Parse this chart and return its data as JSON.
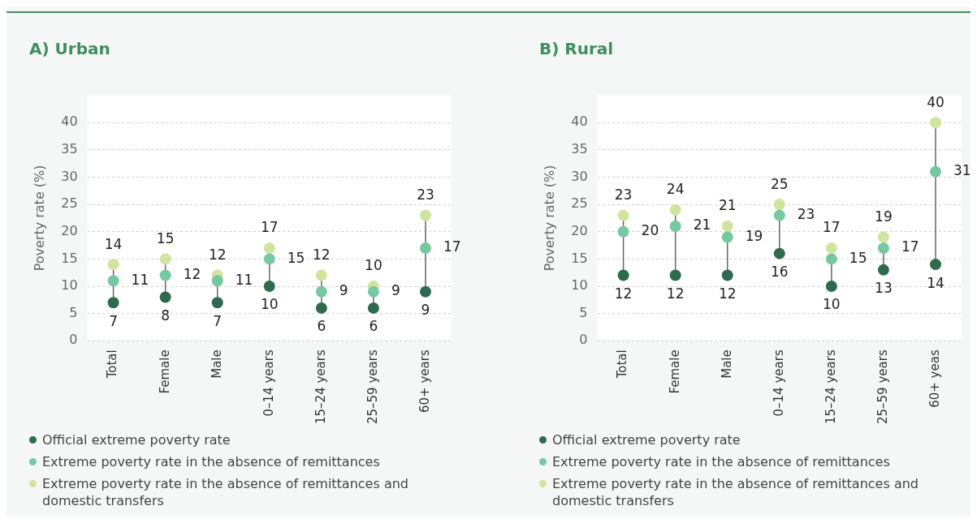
{
  "chart_data": [
    {
      "type": "scatter",
      "title": "A)  Urban",
      "ylabel": "Poverty rate (%)",
      "categories": [
        "Total",
        "Female",
        "Male",
        "0–14 years",
        "15–24 years",
        "25–59 years",
        "60+ years"
      ],
      "series": [
        {
          "name": "Official extreme poverty rate",
          "color": "#2e6b4e",
          "values": [
            7,
            8,
            7,
            10,
            6,
            6,
            9
          ]
        },
        {
          "name": "Extreme poverty rate in the absence of remittances",
          "color": "#74c9a2",
          "values": [
            11,
            12,
            11,
            15,
            9,
            9,
            17
          ]
        },
        {
          "name": "Extreme poverty rate in the absence of remittances and domestic transfers",
          "color": "#d1e49e",
          "values": [
            14,
            15,
            12,
            17,
            12,
            10,
            23
          ]
        }
      ],
      "ylim": [
        0,
        45
      ],
      "yticks": [
        0,
        5,
        10,
        15,
        20,
        25,
        30,
        35,
        40
      ],
      "grid": "y",
      "legend": "bottom left",
      "marker": "circle",
      "data_labels": true
    },
    {
      "type": "scatter",
      "title": "B)  Rural",
      "ylabel": "Poverty rate (%)",
      "categories": [
        "Total",
        "Female",
        "Male",
        "0–14 years",
        "15–24 years",
        "25–59 years",
        "60+ yeas"
      ],
      "series": [
        {
          "name": "Official extreme poverty rate",
          "color": "#2e6b4e",
          "values": [
            12,
            12,
            12,
            16,
            10,
            13,
            14
          ]
        },
        {
          "name": "Extreme poverty rate in the absence of remittances",
          "color": "#74c9a2",
          "values": [
            20,
            21,
            19,
            23,
            15,
            17,
            31
          ]
        },
        {
          "name": "Extreme poverty rate in the absence of remittances and domestic transfers",
          "color": "#d1e49e",
          "values": [
            23,
            24,
            21,
            25,
            17,
            19,
            40
          ]
        }
      ],
      "ylim": [
        0,
        45
      ],
      "yticks": [
        0,
        5,
        10,
        15,
        20,
        25,
        30,
        35,
        40
      ],
      "grid": "y",
      "legend": "bottom left",
      "marker": "circle",
      "data_labels": true
    }
  ]
}
